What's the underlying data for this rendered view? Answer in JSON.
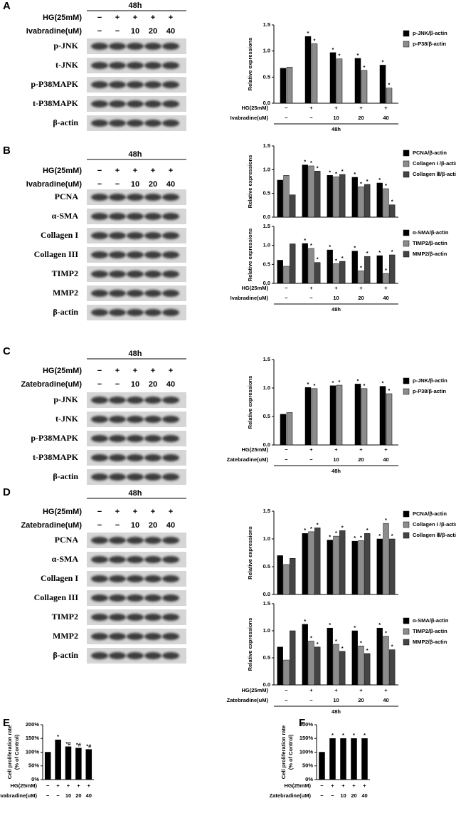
{
  "letters": [
    "A",
    "B",
    "C",
    "D",
    "E",
    "F"
  ],
  "blots": [
    {
      "period": "48h",
      "conditions": [
        {
          "label": "HG(25mM)",
          "values": [
            "−",
            "+",
            "+",
            "+",
            "+"
          ]
        },
        {
          "label": "Ivabradine(uM)",
          "values": [
            "−",
            "−",
            "10",
            "20",
            "40"
          ]
        }
      ],
      "bands": [
        "p-JNK",
        "t-JNK",
        "p-P38MAPK",
        "t-P38MAPK",
        "β-actin"
      ]
    },
    {
      "period": "48h",
      "conditions": [
        {
          "label": "HG(25mM)",
          "values": [
            "−",
            "+",
            "+",
            "+",
            "+"
          ]
        },
        {
          "label": "Ivabradine(uM)",
          "values": [
            "−",
            "−",
            "10",
            "20",
            "40"
          ]
        }
      ],
      "bands": [
        "PCNA",
        "α-SMA",
        "Collagen I",
        "Collagen III",
        "TIMP2",
        "MMP2",
        "β-actin"
      ]
    },
    {
      "period": "48h",
      "conditions": [
        {
          "label": "HG(25mM)",
          "values": [
            "−",
            "+",
            "+",
            "+",
            "+"
          ]
        },
        {
          "label": "Zatebradine(uM)",
          "values": [
            "−",
            "−",
            "10",
            "20",
            "40"
          ]
        }
      ],
      "bands": [
        "p-JNK",
        "t-JNK",
        "p-P38MAPK",
        "t-P38MAPK",
        "β-actin"
      ]
    },
    {
      "period": "48h",
      "conditions": [
        {
          "label": "HG(25mM)",
          "values": [
            "−",
            "+",
            "+",
            "+",
            "+"
          ]
        },
        {
          "label": "Zatebradine(uM)",
          "values": [
            "−",
            "−",
            "10",
            "20",
            "40"
          ]
        }
      ],
      "bands": [
        "PCNA",
        "α-SMA",
        "Collagen I",
        "Collagen III",
        "TIMP2",
        "MMP2",
        "β-actin"
      ]
    }
  ],
  "chart_data": [
    {
      "type": "bar",
      "ylabel": [
        "Relative expressions"
      ],
      "ylim": [
        0,
        1.5
      ],
      "yticks": [
        {
          "value": 0,
          "label": "0.0"
        },
        0.5,
        {
          "value": 1,
          "label": "1.0"
        },
        1.5
      ],
      "series": [
        {
          "name": "p-JNK/β-actin",
          "color": "#000000",
          "values": [
            0.67,
            1.28,
            0.97,
            0.86,
            0.73
          ],
          "marks": [
            null,
            "*",
            "*",
            "*",
            "*"
          ]
        },
        {
          "name": "p-P38/β-actin",
          "color": "#8c8c8c",
          "values": [
            0.69,
            1.14,
            0.85,
            0.63,
            0.29
          ],
          "marks": [
            null,
            "*",
            "*",
            "*",
            "*"
          ]
        }
      ],
      "conditions": [
        {
          "label": "HG(25mM)",
          "values": [
            "−",
            "+",
            "+",
            "+",
            "+"
          ]
        },
        {
          "label": "Ivabradine(uM)",
          "values": [
            "−",
            "−",
            "10",
            "20",
            "40"
          ]
        }
      ],
      "period": "48h"
    },
    {
      "type": "bar",
      "ylabel": [
        "Relative expressions"
      ],
      "ylim": [
        0,
        1.5
      ],
      "yticks": [
        {
          "value": 0,
          "label": "0.0"
        },
        0.5,
        {
          "value": 1,
          "label": "1.0"
        },
        1.5
      ],
      "series": [
        {
          "name": "PCNA/β-actin",
          "color": "#000000",
          "values": [
            0.78,
            1.1,
            0.88,
            0.84,
            0.72
          ],
          "marks": [
            null,
            "*",
            "*",
            "*",
            "*"
          ]
        },
        {
          "name": "Collagen I /β-actin",
          "color": "#8c8c8c",
          "values": [
            0.88,
            1.08,
            0.85,
            0.64,
            0.6
          ],
          "marks": [
            null,
            "*",
            "*",
            "*",
            "*"
          ]
        },
        {
          "name": "Collagen Ⅲ/β-actin",
          "color": "#444444",
          "values": [
            0.47,
            0.97,
            0.9,
            0.69,
            0.26
          ],
          "marks": [
            null,
            "*",
            "*",
            "*",
            "*"
          ]
        }
      ]
    },
    {
      "type": "bar",
      "ylabel": [
        "Relative expressions"
      ],
      "ylim": [
        0,
        1.5
      ],
      "yticks": [
        {
          "value": 0,
          "label": "0.0"
        },
        0.5,
        {
          "value": 1,
          "label": "1.0"
        },
        1.5
      ],
      "series": [
        {
          "name": "α-SMA/β-actin",
          "color": "#000000",
          "values": [
            0.61,
            1.05,
            0.88,
            0.85,
            0.73
          ],
          "marks": [
            null,
            "*",
            "*",
            "*",
            "*"
          ]
        },
        {
          "name": "TIMP2/β-actin",
          "color": "#8c8c8c",
          "values": [
            0.45,
            0.92,
            0.52,
            0.33,
            0.26
          ],
          "marks": [
            null,
            "*",
            "*",
            "*",
            "*"
          ]
        },
        {
          "name": "MMP2/β-actin",
          "color": "#444444",
          "values": [
            1.04,
            0.55,
            0.58,
            0.71,
            0.75
          ],
          "marks": [
            null,
            "*",
            "*",
            "*",
            "*"
          ]
        }
      ],
      "conditions": [
        {
          "label": "HG(25mM)",
          "values": [
            "−",
            "+",
            "+",
            "+",
            "+"
          ]
        },
        {
          "label": "Ivabradine(uM)",
          "values": [
            "−",
            "−",
            "10",
            "20",
            "40"
          ]
        }
      ],
      "period": "48h"
    },
    {
      "type": "bar",
      "ylabel": [
        "Relative expressions"
      ],
      "ylim": [
        0,
        1.5
      ],
      "yticks": [
        {
          "value": 0,
          "label": "0.0"
        },
        0.5,
        {
          "value": 1,
          "label": "1.0"
        },
        1.5
      ],
      "series": [
        {
          "name": "p-JNK/β-actin",
          "color": "#000000",
          "values": [
            0.54,
            1.01,
            1.04,
            1.07,
            1.03
          ],
          "marks": [
            null,
            "*",
            "*",
            "*",
            "*"
          ]
        },
        {
          "name": "p-P38/β-actin",
          "color": "#8c8c8c",
          "values": [
            0.57,
            0.99,
            1.05,
            0.99,
            0.9
          ],
          "marks": [
            null,
            "*",
            "*",
            "*",
            "*"
          ]
        }
      ],
      "conditions": [
        {
          "label": "HG(25mM)",
          "values": [
            "−",
            "+",
            "+",
            "+",
            "+"
          ]
        },
        {
          "label": "Zatebradine(uM)",
          "values": [
            "−",
            "−",
            "10",
            "20",
            "40"
          ]
        }
      ],
      "period": "48h"
    },
    {
      "type": "bar",
      "ylabel": [
        "Relative expressions"
      ],
      "ylim": [
        0,
        1.5
      ],
      "yticks": [
        {
          "value": 0,
          "label": "0.0"
        },
        0.5,
        {
          "value": 1,
          "label": "1.0"
        },
        1.5
      ],
      "series": [
        {
          "name": "PCNA/β-actin",
          "color": "#000000",
          "values": [
            0.7,
            1.1,
            0.98,
            0.96,
            1.0
          ],
          "marks": [
            null,
            "*",
            "*",
            "*",
            "*"
          ]
        },
        {
          "name": "Collagen I /β-actin",
          "color": "#8c8c8c",
          "values": [
            0.54,
            1.13,
            1.05,
            0.97,
            1.28
          ],
          "marks": [
            null,
            "*",
            "*",
            "*",
            "*"
          ]
        },
        {
          "name": "Collagen Ⅲ/β-actin",
          "color": "#444444",
          "values": [
            0.65,
            1.2,
            1.15,
            1.1,
            1.0
          ],
          "marks": [
            null,
            "*",
            "*",
            "*",
            "*"
          ]
        }
      ]
    },
    {
      "type": "bar",
      "ylabel": [
        "Relative expressions"
      ],
      "ylim": [
        0,
        1.5
      ],
      "yticks": [
        {
          "value": 0,
          "label": "0.0"
        },
        0.5,
        {
          "value": 1,
          "label": "1.0"
        },
        1.5
      ],
      "series": [
        {
          "name": "α-SMA/β-actin",
          "color": "#000000",
          "values": [
            0.7,
            1.12,
            1.05,
            1.0,
            1.05
          ],
          "marks": [
            null,
            "*",
            "*",
            "*",
            "*"
          ]
        },
        {
          "name": "TIMP2/β-actin",
          "color": "#8c8c8c",
          "values": [
            0.46,
            0.81,
            0.75,
            0.72,
            0.9
          ],
          "marks": [
            null,
            "*",
            "*",
            "*",
            "*"
          ]
        },
        {
          "name": "MMP2/β-actin",
          "color": "#444444",
          "values": [
            1.0,
            0.7,
            0.62,
            0.58,
            0.65
          ],
          "marks": [
            null,
            "*",
            "*",
            "*",
            "*"
          ]
        }
      ],
      "conditions": [
        {
          "label": "HG(25mM)",
          "values": [
            "−",
            "+",
            "+",
            "+",
            "+"
          ]
        },
        {
          "label": "Zatebradine(uM)",
          "values": [
            "−",
            "−",
            "10",
            "20",
            "40"
          ]
        }
      ],
      "period": "48h"
    },
    {
      "type": "bar",
      "ylabel": [
        "Cell proliferation rate",
        "(% of Control)"
      ],
      "ylim": [
        0,
        200
      ],
      "yticks": [
        {
          "value": 0,
          "label": "0%"
        },
        {
          "value": 50,
          "label": "50%"
        },
        {
          "value": 100,
          "label": "100%"
        },
        {
          "value": 150,
          "label": "150%"
        },
        {
          "value": 200,
          "label": "200%"
        }
      ],
      "series": [
        {
          "color": "#000000",
          "values": [
            100,
            145,
            120,
            115,
            110
          ],
          "marks": [
            null,
            "*",
            "*#",
            "*#",
            "*#"
          ]
        }
      ],
      "conditions": [
        {
          "label": "HG(25mM)",
          "values": [
            "−",
            "+",
            "+",
            "+",
            "+"
          ]
        },
        {
          "label": "Ivabradine(uM)",
          "values": [
            "−",
            "−",
            "10",
            "20",
            "40"
          ]
        }
      ]
    },
    {
      "type": "bar",
      "ylabel": [
        "Cell proliferation rate",
        "(% of Control)"
      ],
      "ylim": [
        0,
        200
      ],
      "yticks": [
        {
          "value": 0,
          "label": "0%"
        },
        {
          "value": 50,
          "label": "50%"
        },
        {
          "value": 100,
          "label": "100%"
        },
        {
          "value": 150,
          "label": "150%"
        },
        {
          "value": 200,
          "label": "200%"
        }
      ],
      "series": [
        {
          "color": "#000000",
          "values": [
            100,
            150,
            150,
            150,
            150
          ],
          "marks": [
            null,
            "*",
            "*",
            "*",
            "*"
          ]
        }
      ],
      "conditions": [
        {
          "label": "HG(25mM)",
          "values": [
            "−",
            "+",
            "+",
            "+",
            "+"
          ]
        },
        {
          "label": "Zatebradine(uM)",
          "values": [
            "−",
            "−",
            "10",
            "20",
            "40"
          ]
        }
      ]
    }
  ]
}
